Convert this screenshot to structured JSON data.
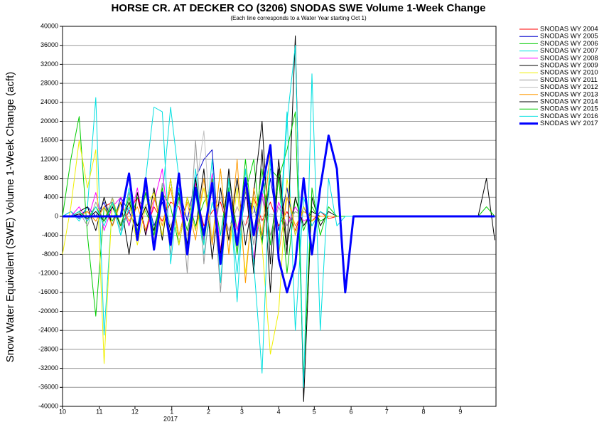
{
  "chart_data": {
    "type": "line",
    "title": "HORSE CR. AT DECKER CO (3206) SNODAS SWE Volume 1-Week Change",
    "subtitle": "(Each line corresponds to a Water Year starting Oct 1)",
    "y_label": "Snow Water Equivalent (SWE) Volume 1-Week Change (acft)",
    "year_label": "2017",
    "xlim": [
      0,
      365
    ],
    "xticks": [
      {
        "value": 0,
        "label": "10"
      },
      {
        "value": 31,
        "label": "11"
      },
      {
        "value": 61,
        "label": "12"
      },
      {
        "value": 92,
        "label": "1"
      },
      {
        "value": 123,
        "label": "2"
      },
      {
        "value": 151,
        "label": "3"
      },
      {
        "value": 182,
        "label": "4"
      },
      {
        "value": 212,
        "label": "5"
      },
      {
        "value": 243,
        "label": "6"
      },
      {
        "value": 273,
        "label": "7"
      },
      {
        "value": 304,
        "label": "8"
      },
      {
        "value": 335,
        "label": "9"
      }
    ],
    "ylim": [
      -40000,
      40000
    ],
    "yticks": [
      -40000,
      -36000,
      -32000,
      -28000,
      -24000,
      -20000,
      -16000,
      -12000,
      -8000,
      -4000,
      0,
      4000,
      8000,
      12000,
      16000,
      20000,
      24000,
      28000,
      32000,
      36000,
      40000
    ],
    "grid": true,
    "legend": "right",
    "x": [
      0,
      7,
      14,
      21,
      28,
      35,
      42,
      49,
      56,
      63,
      70,
      77,
      84,
      91,
      98,
      105,
      112,
      119,
      126,
      133,
      140,
      147,
      154,
      161,
      168,
      175,
      182,
      189,
      196,
      203,
      210,
      217,
      224,
      231,
      238,
      245,
      252,
      259,
      266,
      273,
      280,
      287,
      294,
      301,
      308,
      315,
      322,
      329,
      336,
      343,
      350,
      357,
      364
    ],
    "series": [
      {
        "name": "SNODAS WY 2004",
        "color": "#ff0000",
        "width": 1,
        "values": [
          0,
          0,
          500,
          1000,
          -1000,
          2000,
          3000,
          -2000,
          1000,
          4000,
          -3000,
          2000,
          -1000,
          3000,
          2000,
          -4000,
          5000,
          -2000,
          1000,
          3000,
          -3000,
          2000,
          -2000,
          4000,
          -1000,
          3000,
          -2000,
          1000,
          -3000,
          2000,
          -1000,
          1000,
          -500,
          0,
          0,
          0,
          0,
          0,
          0,
          0,
          0,
          0,
          0,
          0,
          0,
          0,
          0,
          0,
          0,
          0,
          0,
          0,
          0
        ]
      },
      {
        "name": "SNODAS WY 2005",
        "color": "#0000cc",
        "width": 1,
        "values": [
          0,
          1000,
          -500,
          2000,
          0,
          3000,
          -2000,
          4000,
          1000,
          -3000,
          5000,
          -2000,
          3000,
          -4000,
          6000,
          -1000,
          8000,
          12000,
          14000,
          -10000,
          6000,
          -6000,
          4000,
          2000,
          -5000,
          8000,
          -3000,
          6000,
          -4000,
          2000,
          -2000,
          1000,
          0,
          0,
          0,
          0,
          0,
          0,
          0,
          0,
          0,
          0,
          0,
          0,
          0,
          0,
          0,
          0,
          0,
          0,
          0,
          0,
          0
        ]
      },
      {
        "name": "SNODAS WY 2006",
        "color": "#00cc00",
        "width": 1,
        "values": [
          0,
          12000,
          21000,
          -4000,
          -21000,
          2000,
          -1000,
          3000,
          -2000,
          4000,
          1000,
          -3000,
          5000,
          2000,
          -6000,
          4000,
          -2000,
          3000,
          6000,
          -4000,
          8000,
          -3000,
          5000,
          12000,
          -6000,
          10000,
          8000,
          -12000,
          4000,
          -3000,
          2000,
          -1000,
          0,
          0,
          0,
          0,
          0,
          0,
          0,
          0,
          0,
          0,
          0,
          0,
          0,
          0,
          0,
          0,
          0,
          0,
          0,
          0,
          0
        ]
      },
      {
        "name": "SNODAS WY 2007",
        "color": "#00e0e0",
        "width": 1,
        "values": [
          0,
          1000,
          -1000,
          2000,
          25000,
          -25000,
          3000,
          -4000,
          2000,
          -2000,
          6000,
          -3000,
          4000,
          23000,
          8000,
          -6000,
          5000,
          -8000,
          3000,
          -4000,
          6000,
          -12000,
          8000,
          -10000,
          4000,
          12000,
          -6000,
          22000,
          -24000,
          4000,
          -2000,
          1000,
          0,
          0,
          0,
          0,
          0,
          0,
          0,
          0,
          0,
          0,
          0,
          0,
          0,
          0,
          0,
          0,
          0,
          0,
          0,
          0,
          0
        ]
      },
      {
        "name": "SNODAS WY 2008",
        "color": "#ff00ff",
        "width": 1,
        "values": [
          0,
          0,
          2000,
          -1000,
          5000,
          -3000,
          2000,
          4000,
          -2000,
          6000,
          -4000,
          3000,
          10000,
          -6000,
          4000,
          -8000,
          7000,
          -5000,
          9000,
          -7000,
          4000,
          -3000,
          6000,
          -9000,
          5000,
          -4000,
          3000,
          -2000,
          2000,
          -1000,
          0,
          0,
          0,
          0,
          0,
          0,
          0,
          0,
          0,
          0,
          0,
          0,
          0,
          0,
          0,
          0,
          0,
          0,
          0,
          0,
          0,
          0,
          0
        ]
      },
      {
        "name": "SNODAS WY 2009",
        "color": "#000000",
        "width": 1,
        "values": [
          0,
          0,
          1000,
          2000,
          -3000,
          4000,
          -2000,
          3000,
          -8000,
          5000,
          -4000,
          6000,
          -5000,
          8000,
          -6000,
          4000,
          -3000,
          10000,
          -9000,
          6000,
          -5000,
          8000,
          -6000,
          5000,
          20000,
          -10000,
          12000,
          -6000,
          4000,
          -2000,
          1000,
          0,
          0,
          0,
          0,
          0,
          0,
          0,
          0,
          0,
          0,
          0,
          0,
          0,
          0,
          0,
          0,
          0,
          0,
          0,
          0,
          0,
          0
        ]
      },
      {
        "name": "SNODAS WY 2010",
        "color": "#f0f000",
        "width": 1,
        "values": [
          -8000,
          2000,
          16000,
          6000,
          14000,
          -31000,
          4000,
          -2000,
          3000,
          -6000,
          2000,
          5000,
          -4000,
          8000,
          -6000,
          4000,
          -3000,
          6000,
          -5000,
          10000,
          -8000,
          6000,
          -12000,
          4000,
          -6000,
          -29000,
          -20000,
          8000,
          -4000,
          2000,
          -1000,
          0,
          0,
          0,
          0,
          0,
          0,
          0,
          0,
          0,
          0,
          0,
          0,
          0,
          0,
          0,
          0,
          0,
          0,
          0,
          0,
          0,
          0
        ]
      },
      {
        "name": "SNODAS WY 2011",
        "color": "#999999",
        "width": 1,
        "values": [
          0,
          0,
          1000,
          -2000,
          3000,
          -1000,
          4000,
          -3000,
          5000,
          -4000,
          6000,
          -5000,
          7000,
          -8000,
          9000,
          -12000,
          16000,
          -10000,
          8000,
          -16000,
          10000,
          -8000,
          6000,
          -6000,
          4000,
          -4000,
          2000,
          -2000,
          1000,
          0,
          0,
          0,
          0,
          0,
          0,
          0,
          0,
          0,
          0,
          0,
          0,
          0,
          0,
          0,
          0,
          0,
          0,
          0,
          0,
          0,
          0,
          0,
          0
        ]
      },
      {
        "name": "SNODAS WY 2012",
        "color": "#c0c0c0",
        "width": 1,
        "values": [
          0,
          0,
          500,
          -500,
          1000,
          -1000,
          2000,
          -1500,
          3000,
          -2000,
          2500,
          -3000,
          4000,
          -2000,
          3000,
          -4000,
          5000,
          18000,
          -6000,
          4000,
          -3000,
          2000,
          -2000,
          1000,
          -1000,
          500,
          0,
          0,
          0,
          0,
          0,
          0,
          0,
          0,
          0,
          0,
          0,
          0,
          0,
          0,
          0,
          0,
          0,
          0,
          0,
          0,
          0,
          0,
          0,
          0,
          0,
          0,
          0
        ]
      },
      {
        "name": "SNODAS WY 2013",
        "color": "#ff9900",
        "width": 1,
        "values": [
          0,
          0,
          0,
          1000,
          -1000,
          2000,
          -2000,
          3000,
          -1000,
          2000,
          -3000,
          4000,
          -2000,
          6000,
          -4000,
          3000,
          -5000,
          8000,
          -6000,
          10000,
          -8000,
          12000,
          -14000,
          6000,
          -4000,
          14000,
          -8000,
          4000,
          -2000,
          1000,
          0,
          0,
          0,
          0,
          0,
          0,
          0,
          0,
          0,
          0,
          0,
          0,
          0,
          0,
          0,
          0,
          0,
          0,
          0,
          0,
          0,
          0,
          0
        ]
      },
      {
        "name": "SNODAS WY 2014",
        "color": "#000000",
        "width": 1,
        "values": [
          0,
          0,
          500,
          -500,
          1000,
          -1000,
          2000,
          -2000,
          3000,
          -2000,
          2000,
          -3000,
          4000,
          -3000,
          5000,
          -6000,
          8000,
          -4000,
          6000,
          -8000,
          10000,
          -6000,
          8000,
          -12000,
          14000,
          -16000,
          10000,
          -8000,
          38000,
          -39000,
          4000,
          -2000,
          1000,
          0,
          0,
          0,
          0,
          0,
          0,
          0,
          0,
          0,
          0,
          0,
          0,
          0,
          0,
          0,
          0,
          0,
          0,
          8000,
          -5000
        ]
      },
      {
        "name": "SNODAS WY 2015",
        "color": "#00cc00",
        "width": 1,
        "values": [
          0,
          0,
          1000,
          -500,
          2000,
          -1000,
          3000,
          -2000,
          4000,
          -3000,
          5000,
          -4000,
          6000,
          -5000,
          4000,
          -3000,
          5000,
          -6000,
          8000,
          -10000,
          6000,
          -8000,
          12000,
          -4000,
          10000,
          -6000,
          8000,
          14000,
          22000,
          -34000,
          6000,
          -4000,
          2000,
          0,
          0,
          0,
          0,
          0,
          0,
          0,
          0,
          0,
          0,
          0,
          0,
          0,
          0,
          0,
          0,
          0,
          0,
          2000,
          0
        ]
      },
      {
        "name": "SNODAS WY 2016",
        "color": "#00e0e0",
        "width": 1,
        "values": [
          0,
          0,
          1000,
          -1000,
          2000,
          -2000,
          3000,
          -4000,
          6000,
          -5000,
          8000,
          23000,
          22000,
          -10000,
          6000,
          -8000,
          10000,
          -6000,
          12000,
          -14000,
          8000,
          -18000,
          10000,
          -10000,
          -33000,
          12000,
          -8000,
          20000,
          36000,
          -36000,
          30000,
          -24000,
          8000,
          -2000,
          0,
          0,
          0,
          0,
          0,
          0,
          0,
          0,
          0,
          0,
          0,
          0,
          0,
          0,
          0,
          0,
          0,
          0,
          0
        ]
      },
      {
        "name": "SNODAS WY 2017",
        "color": "#0000ff",
        "width": 3,
        "values": [
          0,
          0,
          0,
          0,
          0,
          0,
          0,
          0,
          9000,
          -5000,
          8000,
          -7000,
          5000,
          -6000,
          9000,
          -8000,
          6000,
          -4000,
          7000,
          -10000,
          5000,
          -6000,
          8000,
          -4000,
          6000,
          15000,
          -9000,
          -16000,
          -10000,
          8000,
          -8000,
          6000,
          17000,
          10000,
          -16000,
          0,
          0,
          0,
          0,
          0,
          0,
          0,
          0,
          0,
          0,
          0,
          0,
          0,
          0,
          0,
          0,
          0,
          0
        ]
      }
    ]
  }
}
